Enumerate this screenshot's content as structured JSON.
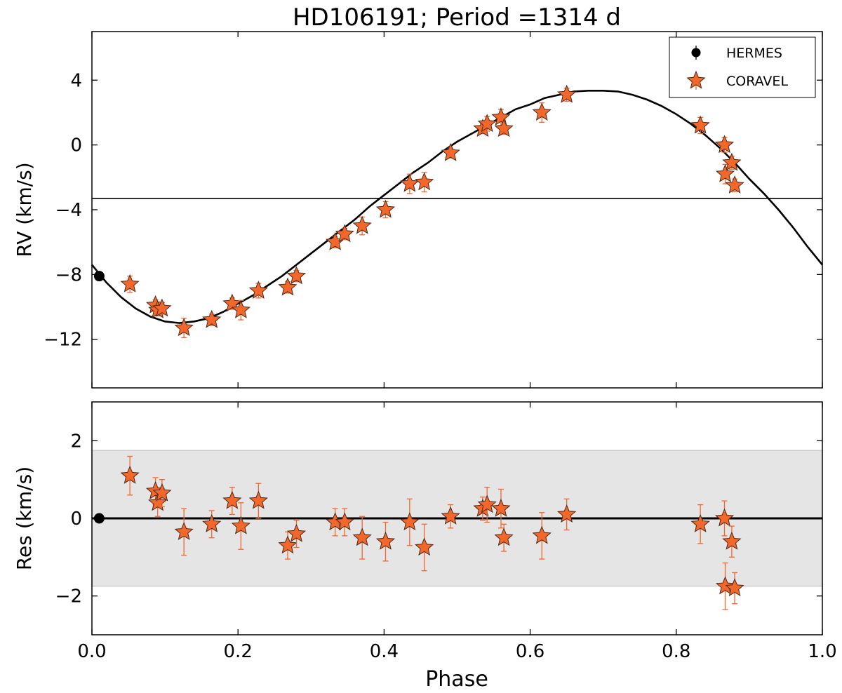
{
  "chart_data": [
    {
      "type": "scatter",
      "panel": "rv",
      "title": "HD106191; Period =1314 d",
      "xlabel": "",
      "ylabel": "RV (km/s)",
      "xlim": [
        0.0,
        1.0
      ],
      "ylim": [
        -15.0,
        7.0
      ],
      "yticks": [
        4,
        0,
        -4,
        -8,
        -12
      ],
      "ytick_labels": [
        "4",
        "0",
        "−4",
        "−8",
        "−12"
      ],
      "systemic_velocity": -3.3,
      "model_curve": {
        "name": "orbit fit",
        "x": [
          0.0,
          0.02,
          0.04,
          0.06,
          0.08,
          0.1,
          0.12,
          0.14,
          0.16,
          0.18,
          0.2,
          0.22,
          0.24,
          0.26,
          0.28,
          0.3,
          0.32,
          0.34,
          0.36,
          0.38,
          0.4,
          0.42,
          0.44,
          0.46,
          0.48,
          0.5,
          0.52,
          0.54,
          0.56,
          0.58,
          0.6,
          0.62,
          0.64,
          0.66,
          0.68,
          0.7,
          0.72,
          0.74,
          0.76,
          0.78,
          0.8,
          0.82,
          0.84,
          0.86,
          0.88,
          0.9,
          0.92,
          0.94,
          0.96,
          0.98,
          1.0
        ],
        "y": [
          -7.4,
          -8.5,
          -9.4,
          -10.1,
          -10.6,
          -10.9,
          -11.0,
          -10.9,
          -10.7,
          -10.3,
          -9.8,
          -9.3,
          -8.7,
          -8.1,
          -7.4,
          -6.7,
          -6.0,
          -5.3,
          -4.6,
          -3.8,
          -3.1,
          -2.4,
          -1.7,
          -1.1,
          -0.4,
          0.2,
          0.7,
          1.2,
          1.7,
          2.2,
          2.5,
          2.9,
          3.1,
          3.3,
          3.35,
          3.35,
          3.3,
          3.1,
          2.8,
          2.4,
          1.9,
          1.3,
          0.6,
          -0.2,
          -1.1,
          -2.1,
          -3.0,
          -4.0,
          -5.1,
          -6.3,
          -7.4
        ]
      },
      "series": [
        {
          "name": "HERMES",
          "marker": "circle",
          "color": "#000000",
          "x": [
            0.01
          ],
          "y": [
            -8.1
          ],
          "err": [
            0.1
          ]
        },
        {
          "name": "CORAVEL",
          "marker": "star",
          "color": "#f4672a",
          "x": [
            0.052,
            0.087,
            0.09,
            0.096,
            0.126,
            0.164,
            0.192,
            0.204,
            0.228,
            0.268,
            0.28,
            0.333,
            0.346,
            0.37,
            0.402,
            0.435,
            0.455,
            0.491,
            0.535,
            0.541,
            0.56,
            0.564,
            0.616,
            0.65,
            0.833,
            0.866,
            0.867,
            0.876,
            0.88
          ],
          "y": [
            -8.6,
            -9.9,
            -10.2,
            -10.1,
            -11.3,
            -10.8,
            -9.8,
            -10.2,
            -9.0,
            -8.8,
            -8.1,
            -6.0,
            -5.5,
            -5.0,
            -4.0,
            -2.4,
            -2.3,
            -0.5,
            1.0,
            1.3,
            1.7,
            1.0,
            2.0,
            3.1,
            1.2,
            0.0,
            -1.8,
            -1.1,
            -2.5
          ],
          "err": [
            0.5,
            0.35,
            0.35,
            0.35,
            0.6,
            0.35,
            0.35,
            0.6,
            0.45,
            0.35,
            0.35,
            0.35,
            0.35,
            0.55,
            0.5,
            0.6,
            0.6,
            0.3,
            0.3,
            0.45,
            0.5,
            0.35,
            0.6,
            0.4,
            0.5,
            0.45,
            0.6,
            0.4,
            0.4
          ]
        }
      ],
      "legend": {
        "position": "top-right",
        "entries": [
          "HERMES",
          "CORAVEL"
        ]
      }
    },
    {
      "type": "scatter",
      "panel": "residuals",
      "xlabel": "Phase",
      "ylabel": "Res (km/s)",
      "xlim": [
        0.0,
        1.0
      ],
      "ylim": [
        -3.0,
        3.0
      ],
      "xticks": [
        0.0,
        0.2,
        0.4,
        0.6,
        0.8,
        1.0
      ],
      "xtick_labels": [
        "0.0",
        "0.2",
        "0.4",
        "0.6",
        "0.8",
        "1.0"
      ],
      "yticks": [
        2,
        0,
        -2
      ],
      "ytick_labels": [
        "2",
        "0",
        "−2"
      ],
      "shaded_band": [
        -1.75,
        1.75
      ],
      "zero_line": 0,
      "series": [
        {
          "name": "HERMES",
          "marker": "circle",
          "color": "#000000",
          "x": [
            0.01
          ],
          "y": [
            0.0
          ],
          "err": [
            0.05
          ]
        },
        {
          "name": "CORAVEL",
          "marker": "star",
          "color": "#f4672a",
          "x": [
            0.052,
            0.087,
            0.09,
            0.096,
            0.126,
            0.164,
            0.192,
            0.204,
            0.228,
            0.268,
            0.28,
            0.333,
            0.346,
            0.37,
            0.402,
            0.435,
            0.455,
            0.491,
            0.535,
            0.541,
            0.56,
            0.564,
            0.616,
            0.65,
            0.833,
            0.866,
            0.867,
            0.876,
            0.88
          ],
          "y": [
            1.1,
            0.7,
            0.4,
            0.65,
            -0.35,
            -0.15,
            0.45,
            -0.2,
            0.45,
            -0.7,
            -0.4,
            -0.1,
            -0.1,
            -0.5,
            -0.6,
            -0.1,
            -0.75,
            0.05,
            0.25,
            0.35,
            0.25,
            -0.5,
            -0.45,
            0.1,
            -0.15,
            0.0,
            -1.75,
            -0.6,
            -1.8
          ],
          "err": [
            0.5,
            0.35,
            0.35,
            0.35,
            0.6,
            0.35,
            0.35,
            0.6,
            0.45,
            0.35,
            0.35,
            0.35,
            0.35,
            0.55,
            0.5,
            0.6,
            0.6,
            0.3,
            0.3,
            0.45,
            0.5,
            0.35,
            0.6,
            0.4,
            0.5,
            0.45,
            0.6,
            0.4,
            0.4
          ]
        }
      ]
    }
  ]
}
